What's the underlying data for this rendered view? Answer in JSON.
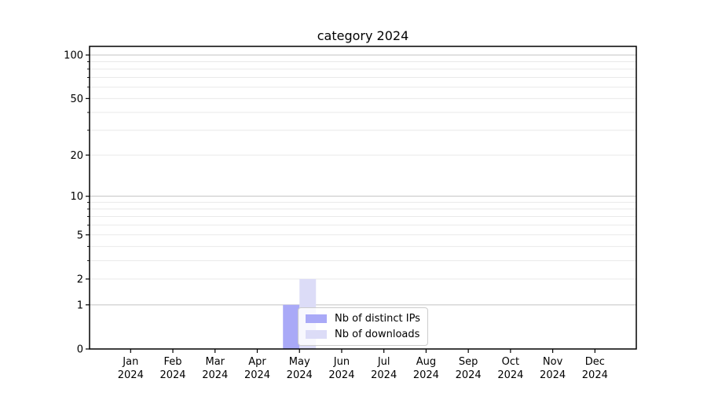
{
  "chart_data": {
    "type": "bar",
    "title": "category 2024",
    "x_axis": {
      "months": [
        "Jan",
        "Feb",
        "Mar",
        "Apr",
        "May",
        "Jun",
        "Jul",
        "Aug",
        "Sep",
        "Oct",
        "Nov",
        "Dec"
      ],
      "year": "2024"
    },
    "y_axis": {
      "scale": "log1p",
      "labeled_ticks": [
        0,
        1,
        2,
        5,
        10,
        20,
        50,
        100
      ],
      "tick_labels": [
        "0",
        "1",
        "2",
        "5",
        "10",
        "20",
        "50",
        "100"
      ],
      "minor_ticks": [
        3,
        4,
        6,
        7,
        8,
        9,
        30,
        40,
        60,
        70,
        80,
        90
      ],
      "major_gridlines": [
        1,
        10,
        100
      ],
      "minor_gridlines": [
        2,
        3,
        4,
        5,
        6,
        7,
        8,
        9,
        20,
        30,
        40,
        50,
        60,
        70,
        80,
        90
      ],
      "ylim": [
        0,
        115
      ],
      "grid": true
    },
    "series": [
      {
        "name": "Nb of distinct IPs",
        "color": "#a9a9f7",
        "values": [
          0,
          0,
          0,
          0,
          1,
          0,
          0,
          0,
          0,
          0,
          0,
          0
        ]
      },
      {
        "name": "Nb of downloads",
        "color": "#dcdcf7",
        "values": [
          0,
          0,
          0,
          0,
          2,
          0,
          0,
          0,
          0,
          0,
          0,
          0
        ]
      }
    ],
    "legend": {
      "position": "inside-lower-center"
    },
    "colors": {
      "major_grid": "#c3c3c3",
      "minor_grid": "#e9e9e9",
      "axis": "#000000",
      "background": "#ffffff"
    }
  }
}
